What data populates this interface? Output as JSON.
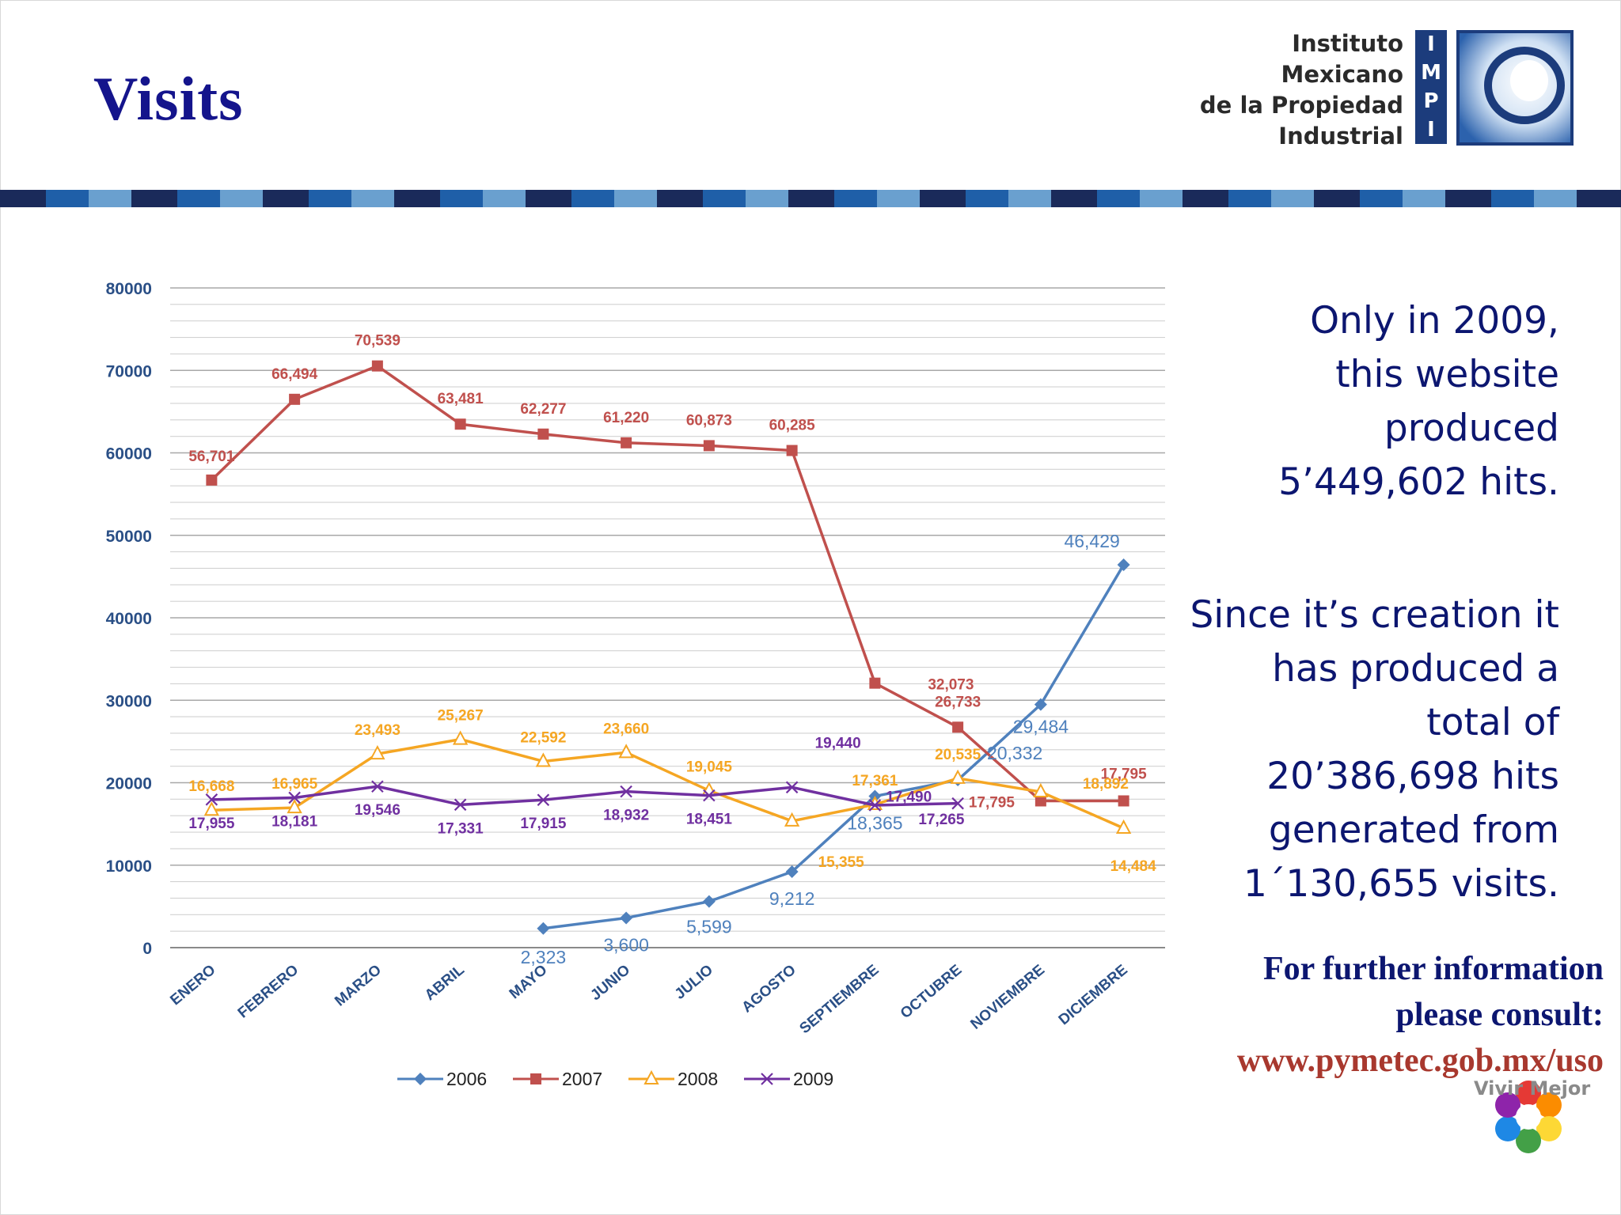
{
  "slide": {
    "title": "Visits",
    "logo_text": [
      "Instituto",
      "Mexicano",
      "de la Propiedad",
      "Industrial"
    ],
    "logo_letters": [
      "I",
      "M",
      "P",
      "I"
    ],
    "summary_1": [
      "Only in 2009,",
      "this website",
      "produced",
      "5’449,602 hits."
    ],
    "summary_2": [
      "Since it’s creation it",
      "has produced a",
      "total of",
      "20’386,698 hits",
      "generated from",
      "1´130,655 visits."
    ],
    "info_lines": [
      "For further information",
      "please consult:"
    ],
    "info_url": "www.pymetec.gob.mx/uso",
    "footer_logo_text": "Vivir Mejor"
  },
  "colors": {
    "title": "#14148c",
    "stripe_dark": "#1a2a5a",
    "stripe_mid": "#1f5fa8",
    "stripe_light": "#6aa0cf",
    "s2006": "#4f81bd",
    "s2007": "#c0504d",
    "s2008": "#f5a623",
    "s2009": "#7030a0"
  },
  "chart_data": {
    "type": "line",
    "categories": [
      "ENERO",
      "FEBRERO",
      "MARZO",
      "ABRIL",
      "MAYO",
      "JUNIO",
      "JULIO",
      "AGOSTO",
      "SEPTIEMBRE",
      "OCTUBRE",
      "NOVIEMBRE",
      "DICIEMBRE"
    ],
    "ylim": [
      0,
      80000
    ],
    "yticks": [
      "0",
      "10000",
      "20000",
      "30000",
      "40000",
      "50000",
      "60000",
      "70000",
      "80000"
    ],
    "grid": true,
    "legend_position": "bottom",
    "series": [
      {
        "name": "2006",
        "marker": "diamond",
        "values": [
          null,
          null,
          null,
          null,
          2323,
          3600,
          5599,
          9212,
          18365,
          20332,
          29484,
          46429
        ],
        "labels": [
          null,
          null,
          null,
          null,
          "2,323",
          "3,600",
          "5,599",
          "9,212",
          "18,365",
          "20,332",
          "29,484",
          "46,429"
        ]
      },
      {
        "name": "2007",
        "marker": "square",
        "values": [
          56701,
          66494,
          70539,
          63481,
          62277,
          61220,
          60873,
          60285,
          32073,
          26733,
          17795,
          17795
        ],
        "labels": [
          "56,701",
          "66,494",
          "70,539",
          "63,481",
          "62,277",
          "61,220",
          "60,873",
          "60,285",
          "32,073",
          "26,733",
          "17,795",
          "17,795"
        ]
      },
      {
        "name": "2008",
        "marker": "triangle",
        "values": [
          16668,
          16965,
          23493,
          25267,
          22592,
          23660,
          19045,
          15355,
          17361,
          20535,
          18892,
          14484
        ],
        "labels": [
          "16,668",
          "16,965",
          "23,493",
          "25,267",
          "22,592",
          "23,660",
          "19,045",
          "15,355",
          "17,361",
          "20,535",
          "18,892",
          "14,484"
        ]
      },
      {
        "name": "2009",
        "marker": "x",
        "values": [
          17955,
          18181,
          19546,
          17331,
          17915,
          18932,
          18451,
          19440,
          17265,
          17490,
          null,
          null
        ],
        "labels": [
          "17,955",
          "18,181",
          "19,546",
          "17,331",
          "17,915",
          "18,932",
          "18,451",
          "19,440",
          "17,265",
          "17,490",
          null,
          null
        ]
      }
    ]
  }
}
